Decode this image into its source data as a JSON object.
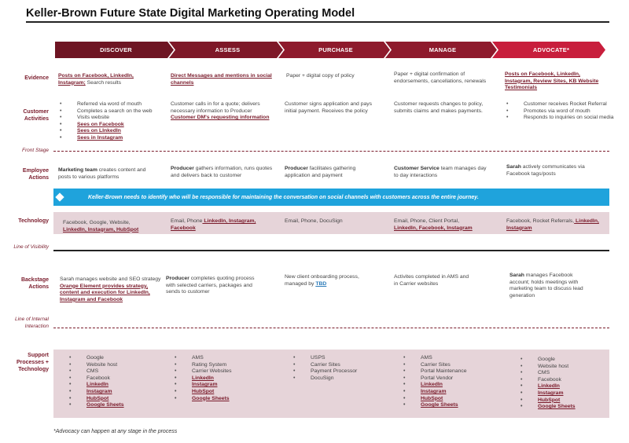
{
  "title": "Keller-Brown Future State Digital Marketing Operating Model",
  "stages": [
    "DISCOVER",
    "ASSESS",
    "PURCHASE",
    "MANAGE",
    "ADVOCATE*"
  ],
  "colors": {
    "stage_dark": "#6e1523",
    "stage_mid": "#8e1a2c",
    "stage_bright": "#c81e3c",
    "label": "#7a1b2b",
    "banner": "#1fa3dc",
    "band": "#e6d4d9"
  },
  "row_labels": {
    "evidence": "Evidence",
    "customer_activities": "Customer Activities",
    "employee_actions": "Employee Actions",
    "technology": "Technology",
    "backstage_actions": "Backstage Actions",
    "support": "Support Processes + Technology"
  },
  "line_labels": {
    "front_stage": "Front Stage",
    "visibility": "Line of Visibility",
    "internal": "Line of Internal Interaction"
  },
  "evidence": {
    "discover_link": "Posts on Facebook, LinkedIn, Instagram;",
    "discover_rest": " Search results",
    "assess": "Direct Messages and mentions in social channels",
    "purchase": "Paper + digital copy of policy",
    "manage": "Paper + digital confirmation of endorsements, cancellations, renewals",
    "advocate": "Posts on Facebook, LinkedIn, Instagram, Review Sites, KB Website Testimonials"
  },
  "customer": {
    "discover_plain": [
      "Referred via word of mouth",
      "Completes a search on the web",
      "Visits website"
    ],
    "discover_links": [
      "Sees on Facebook",
      "Sees on LInkedIn",
      "Sees in Instagram"
    ],
    "assess_text": "Customer calls in for a quote; delivers necessary information to Producer",
    "assess_link": "Customer DM's requesting information",
    "purchase": "Customer signs application and pays initial payment. Receives the policy",
    "manage": "Customer requests changes to policy, submits claims and makes payments.",
    "advocate": [
      "Customer receives Rocket Referral",
      "Promotes via word of mouth",
      "Responds to inquiries on social media"
    ]
  },
  "employee": {
    "discover_bold": "Marketing team",
    "discover_rest": " creates content and posts to various platforms",
    "assess_bold": "Producer",
    "assess_rest": " gathers information, runs quotes and delivers back to customer",
    "purchase_bold": "Producer",
    "purchase_rest": " facilitates gathering application and payment",
    "manage_bold": "Customer Service",
    "manage_rest": " team manages day to day interactions",
    "advocate_bold": "Sarah",
    "advocate_rest": " actively communicates via Facebook tags/posts"
  },
  "banner": "Keller-Brown needs to identify who will be responsible for maintaining the conversation on social channels with customers across the entire journey.",
  "technology": {
    "discover_plain": "Facebook, Google, Website,",
    "discover_link": "LinkedIn, Instagram, HubSpot",
    "assess_plain": "Email, Phone",
    "assess_link": " LinkedIn, Instagram, Facebook",
    "purchase": "Email, Phone, DocuSign",
    "manage_plain": "Email, Phone, Client Portal,",
    "manage_link": "LinkedIn, Facebook, Instagram",
    "advocate_plain": "Facebook, Rocket Referrals,",
    "advocate_link": " LinkedIn, Instagram"
  },
  "backstage": {
    "discover_text": "Sarah manages website and SEO strategy",
    "discover_link": "Orange Element provides strategy, content and execution for LinkedIn, Instagram and Facebook",
    "assess_bold": "Producer",
    "assess_rest": " completes quoting process with selected carriers, packages and sends to customer",
    "purchase_text": "New client onboarding process, managed by ",
    "purchase_link": "TBD",
    "manage": "Activites completed in AMS and in Carrier websites",
    "advocate_bold": "Sarah",
    "advocate_rest": " manages Facebook account; holds meetings with marketing team to discuss lead generation"
  },
  "support": {
    "discover_plain": [
      "Google",
      "Website host",
      "CMS",
      "Facebook"
    ],
    "discover_links": [
      "LinkedIn",
      "Instagram",
      "HubSpot",
      "Google Sheets"
    ],
    "assess_plain": [
      "AMS",
      "Rating System",
      "Carrier Websites"
    ],
    "assess_links": [
      "LinkedIn",
      "Instagram",
      "HubSpot",
      "Google Sheets"
    ],
    "purchase_plain": [
      "USPS",
      "Carrier Sites",
      "Payment Processor",
      "DocuSign"
    ],
    "manage_plain": [
      "AMS",
      "Carrier Sites",
      "Portal Maintenance",
      "Portal Vendor"
    ],
    "manage_links": [
      "LinkedIn",
      "Instagram",
      "HubSpot",
      "Google Sheets"
    ],
    "advocate_plain": [
      "Google",
      "Website host",
      "CMS",
      "Facebook"
    ],
    "advocate_links": [
      "LinkedIn",
      "Instagram",
      "HubSpot",
      "Google Sheets"
    ]
  },
  "footnote": "*Advocacy can happen at any stage in the process"
}
